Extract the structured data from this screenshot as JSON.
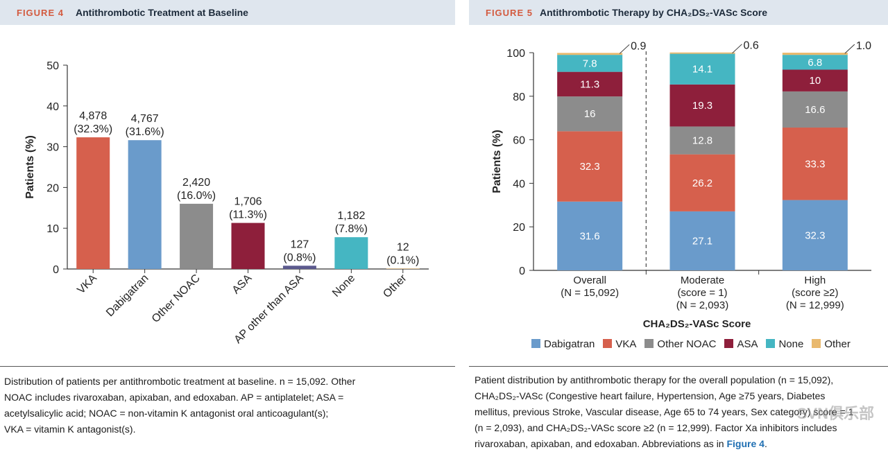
{
  "colors": {
    "dabigatran": "#6a9bcb",
    "vka": "#d6604d",
    "other_noac": "#8c8c8c",
    "asa": "#8e1f3b",
    "ap_other": "#5c5a8e",
    "none": "#45b6c2",
    "other": "#e9b96e",
    "header_bg": "#dfe6ee",
    "figure_number": "#d35a3f"
  },
  "figure4": {
    "number": "FIGURE 4",
    "title": "Antithrombotic Treatment at Baseline",
    "caption_lines": [
      "Distribution of patients per antithrombotic treatment at baseline. n = 15,092. Other",
      "NOAC includes rivaroxaban, apixaban, and edoxaban. AP = antiplatelet; ASA =",
      "acetylsalicylic acid; NOAC = non-vitamin K antagonist oral anticoagulant(s);",
      "VKA = vitamin K antagonist(s)."
    ]
  },
  "figure5": {
    "number": "FIGURE 5",
    "title": "Antithrombotic Therapy by CHA₂DS₂-VASc Score",
    "caption_lines": [
      "Patient distribution by antithrombotic therapy for the overall population (n = 15,092),",
      "CHA₂DS₂-VASc (Congestive heart failure, Hypertension, Age ≥75 years, Diabetes",
      "mellitus, previous Stroke, Vascular disease, Age 65 to 74 years, Sex category) score = 1",
      "(n = 2,093), and CHA₂DS₂-VASc score ≥2 (n = 12,999). Factor Xa inhibitors includes",
      "rivaroxaban, apixaban, and edoxaban. Abbreviations as in "
    ],
    "caption_ref": "Figure 4",
    "caption_end": "."
  },
  "watermark": "SVN俱乐部",
  "chart_data": [
    {
      "type": "bar",
      "title": "Antithrombotic Treatment at Baseline",
      "ylabel": "Patients (%)",
      "ylim": [
        0,
        50
      ],
      "yticks": [
        0,
        10,
        20,
        30,
        40,
        50
      ],
      "categories": [
        "VKA",
        "Dabigatran",
        "Other NOAC",
        "ASA",
        "AP other than ASA",
        "None",
        "Other"
      ],
      "values": [
        32.3,
        31.6,
        16.0,
        11.3,
        0.8,
        7.8,
        0.1
      ],
      "counts": [
        "4,878",
        "4,767",
        "2,420",
        "1,706",
        "127",
        "1,182",
        "12"
      ],
      "pct_labels": [
        "(32.3%)",
        "(31.6%)",
        "(16.0%)",
        "(11.3%)",
        "(0.8%)",
        "(7.8%)",
        "(0.1%)"
      ],
      "color_keys": [
        "vka",
        "dabigatran",
        "other_noac",
        "asa",
        "ap_other",
        "none",
        "other"
      ]
    },
    {
      "type": "bar",
      "stacked": true,
      "title": "Antithrombotic Therapy by CHA₂DS₂-VASc Score",
      "ylabel": "Patients (%)",
      "xlabel": "CHA₂DS₂-VASc Score",
      "ylim": [
        0,
        100
      ],
      "yticks": [
        0,
        20,
        40,
        60,
        80,
        100
      ],
      "categories": [
        [
          "Overall",
          "(N = 15,092)"
        ],
        [
          "Moderate",
          "(score = 1)",
          "(N = 2,093)"
        ],
        [
          "High",
          "(score ≥2)",
          "(N = 12,999)"
        ]
      ],
      "series": [
        {
          "name": "Dabigatran",
          "key": "dabigatran",
          "values": [
            31.6,
            27.1,
            32.3
          ]
        },
        {
          "name": "VKA",
          "key": "vka",
          "values": [
            32.3,
            26.2,
            33.3
          ]
        },
        {
          "name": "Other NOAC",
          "key": "other_noac",
          "values": [
            16,
            12.8,
            16.6
          ]
        },
        {
          "name": "ASA",
          "key": "asa",
          "values": [
            11.3,
            19.3,
            10
          ]
        },
        {
          "name": "None",
          "key": "none",
          "values": [
            7.8,
            14.1,
            6.8
          ]
        },
        {
          "name": "Other",
          "key": "other",
          "values": [
            0.9,
            0.6,
            1.0
          ]
        }
      ],
      "other_labels": [
        "0.9",
        "0.6",
        "1.0"
      ]
    }
  ]
}
